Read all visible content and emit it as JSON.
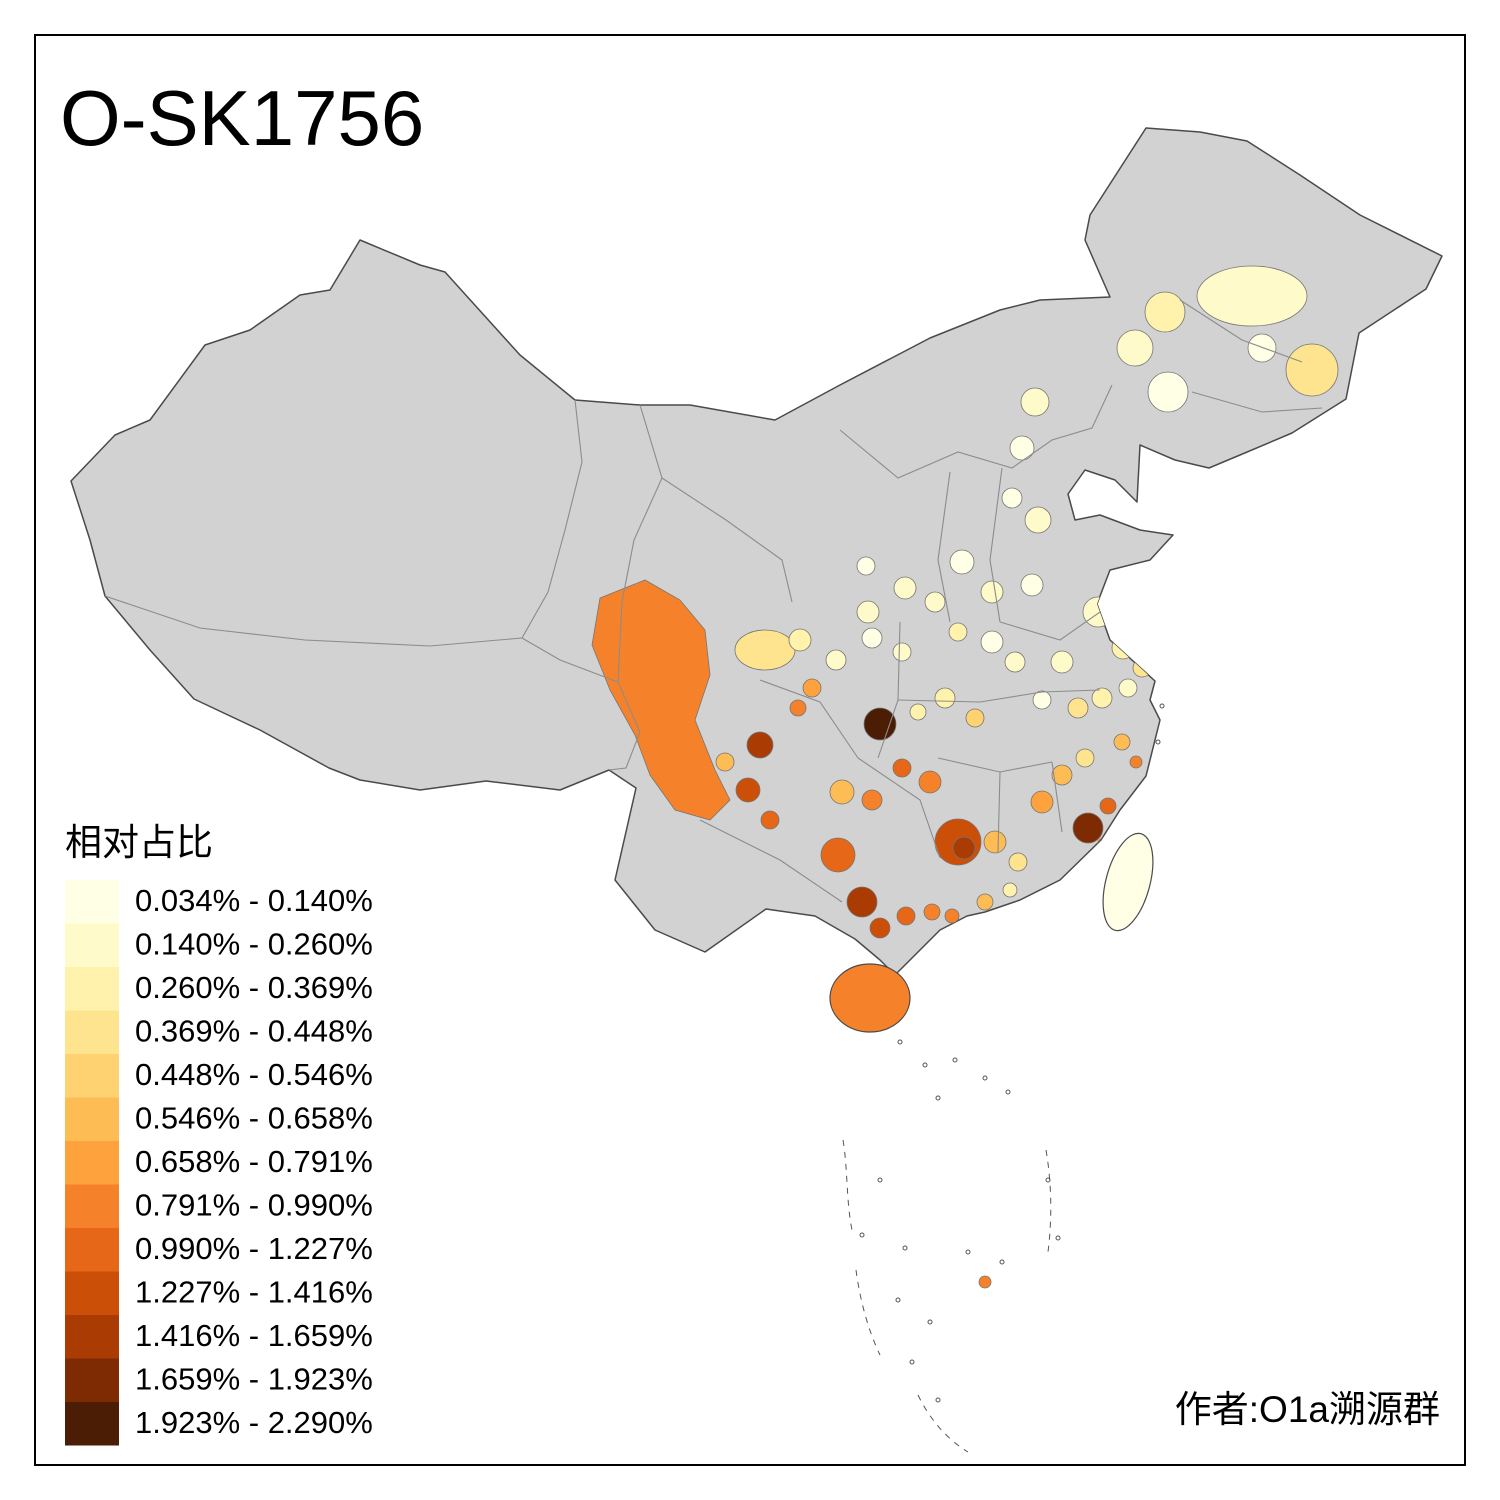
{
  "title": "O-SK1756",
  "credit": "作者:O1a溯源群",
  "legend": {
    "title": "相对占比",
    "classes": [
      {
        "label": "0.034% - 0.140%",
        "color": "#FFFFE5"
      },
      {
        "label": "0.140% - 0.260%",
        "color": "#FFFAC9"
      },
      {
        "label": "0.260% - 0.369%",
        "color": "#FEF2AC"
      },
      {
        "label": "0.369% - 0.448%",
        "color": "#FEE48F"
      },
      {
        "label": "0.448% - 0.546%",
        "color": "#FED271"
      },
      {
        "label": "0.546% - 0.658%",
        "color": "#FEBC55"
      },
      {
        "label": "0.658% - 0.791%",
        "color": "#FEA23D"
      },
      {
        "label": "0.791% - 0.990%",
        "color": "#F5822A"
      },
      {
        "label": "0.990% - 1.227%",
        "color": "#E66717"
      },
      {
        "label": "1.227% - 1.416%",
        "color": "#CC4F08"
      },
      {
        "label": "1.416% - 1.659%",
        "color": "#A93B03"
      },
      {
        "label": "1.659% - 1.923%",
        "color": "#7E2B04"
      },
      {
        "label": "1.923% - 2.290%",
        "color": "#4A1D04"
      }
    ]
  },
  "map": {
    "type": "choropleth",
    "no_data_color": "#D2D2D2",
    "land_border_color": "#4A4A4A",
    "province_border_color": "#8C8C8C"
  }
}
